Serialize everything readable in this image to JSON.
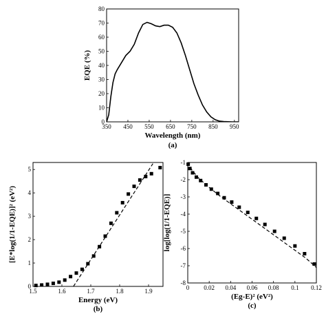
{
  "chart_data": [
    {
      "type": "line",
      "panel_label": "(a)",
      "xlabel": "Wavelength (nm)",
      "ylabel": "EQE (%)",
      "xlim": [
        350,
        970
      ],
      "ylim": [
        0,
        80
      ],
      "xticks": [
        350,
        450,
        550,
        650,
        750,
        850,
        950
      ],
      "yticks": [
        0,
        10,
        20,
        30,
        40,
        50,
        60,
        70,
        80
      ],
      "grid": false,
      "series": [
        {
          "style": "solid",
          "x": [
            350,
            360,
            370,
            380,
            390,
            400,
            420,
            440,
            460,
            480,
            500,
            520,
            540,
            560,
            580,
            600,
            620,
            640,
            660,
            680,
            700,
            720,
            740,
            760,
            780,
            800,
            820,
            840,
            860,
            880,
            900,
            920,
            940,
            960,
            970
          ],
          "y": [
            0,
            5,
            18,
            28,
            34,
            37,
            42,
            47,
            50,
            55,
            63,
            69,
            70.5,
            69.5,
            68,
            67.5,
            68.5,
            68.5,
            67,
            63,
            56,
            47,
            37,
            27,
            19,
            12,
            7,
            3.5,
            1.5,
            0.5,
            0.2,
            0.1,
            0,
            0,
            0
          ]
        }
      ]
    },
    {
      "type": "scatter",
      "panel_label": "(b)",
      "xlabel": "Energy (eV)",
      "ylabel": "[E*log(1/1-EQE)]² (eV²)",
      "xlim": [
        1.5,
        1.95
      ],
      "ylim": [
        0,
        5.3
      ],
      "xticks": [
        1.5,
        1.6,
        1.7,
        1.8,
        1.9
      ],
      "yticks": [
        0,
        1,
        2,
        3,
        4,
        5
      ],
      "grid": false,
      "series": [
        {
          "style": "markers",
          "x": [
            1.51,
            1.53,
            1.55,
            1.57,
            1.59,
            1.61,
            1.63,
            1.65,
            1.67,
            1.69,
            1.71,
            1.73,
            1.75,
            1.77,
            1.79,
            1.81,
            1.83,
            1.85,
            1.87,
            1.89,
            1.91,
            1.94
          ],
          "y": [
            0.04,
            0.06,
            0.09,
            0.13,
            0.18,
            0.27,
            0.42,
            0.57,
            0.73,
            0.97,
            1.3,
            1.7,
            2.15,
            2.7,
            3.15,
            3.58,
            3.95,
            4.28,
            4.55,
            4.7,
            4.82,
            5.08
          ]
        },
        {
          "style": "dashed",
          "x": [
            1.64,
            1.915
          ],
          "y": [
            0,
            5.25
          ]
        }
      ]
    },
    {
      "type": "scatter",
      "panel_label": "(c)",
      "xlabel": "(Eg-E)² (eV²)",
      "ylabel": "log[log(1/1-EQE)]",
      "xlim": [
        0,
        0.12
      ],
      "ylim": [
        -8,
        -1
      ],
      "xticks": [
        0,
        0.02,
        0.04,
        0.06,
        0.08,
        0.1,
        0.12
      ],
      "xtick_labels": [
        "0",
        "0.02",
        "0.04",
        "0.06",
        "0.08",
        "0.1",
        "0.12"
      ],
      "yticks": [
        -8,
        -7,
        -6,
        -5,
        -4,
        -3,
        -2,
        -1
      ],
      "grid": false,
      "series": [
        {
          "style": "markers",
          "x": [
            0.0004,
            0.002,
            0.0045,
            0.008,
            0.012,
            0.017,
            0.022,
            0.028,
            0.034,
            0.041,
            0.048,
            0.056,
            0.064,
            0.072,
            0.081,
            0.09,
            0.1,
            0.109,
            0.118
          ],
          "y": [
            -1.1,
            -1.35,
            -1.6,
            -1.85,
            -2.05,
            -2.3,
            -2.55,
            -2.8,
            -3.05,
            -3.3,
            -3.6,
            -3.9,
            -4.25,
            -4.6,
            -5.0,
            -5.4,
            -5.85,
            -6.3,
            -6.9
          ]
        },
        {
          "style": "dashed",
          "x": [
            0,
            0.004,
            0.01,
            0.02,
            0.03,
            0.04,
            0.05,
            0.06,
            0.07,
            0.08,
            0.09,
            0.1,
            0.11,
            0.12
          ],
          "y": [
            -1.0,
            -1.45,
            -1.9,
            -2.45,
            -2.95,
            -3.4,
            -3.85,
            -4.3,
            -4.75,
            -5.2,
            -5.65,
            -6.1,
            -6.55,
            -7.1
          ]
        }
      ]
    }
  ]
}
